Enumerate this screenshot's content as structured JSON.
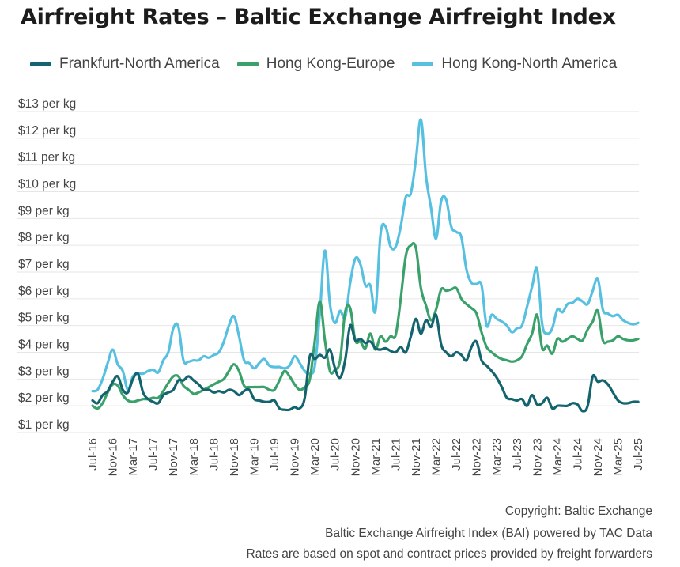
{
  "chart_data": {
    "type": "line",
    "title": "Airfreight Rates – Baltic Exchange Airfreight Index",
    "xlabel": "",
    "ylabel": "",
    "ylim": [
      1,
      13
    ],
    "grid": true,
    "legend_position": "top",
    "y_ticks": [
      {
        "value": 13,
        "label": "$13 per kg"
      },
      {
        "value": 12,
        "label": "$12 per kg"
      },
      {
        "value": 11,
        "label": "$11 per kg"
      },
      {
        "value": 10,
        "label": "$10 per kg"
      },
      {
        "value": 9,
        "label": "$9 per kg"
      },
      {
        "value": 8,
        "label": "$8 per kg"
      },
      {
        "value": 7,
        "label": "$7 per kg"
      },
      {
        "value": 6,
        "label": "$6 per kg"
      },
      {
        "value": 5,
        "label": "$5 per kg"
      },
      {
        "value": 4,
        "label": "$4 per kg"
      },
      {
        "value": 3,
        "label": "$3 per kg"
      },
      {
        "value": 2,
        "label": "$2 per kg"
      },
      {
        "value": 1,
        "label": "$1 per kg"
      }
    ],
    "x_start": "Jul-16",
    "x_end": "Jul-25",
    "x_interval_months": 1,
    "x_tick_labels": [
      "Jul-16",
      "Nov-16",
      "Mar-17",
      "Jul-17",
      "Nov-17",
      "Mar-18",
      "Jul-18",
      "Nov-18",
      "Mar-19",
      "Jul-19",
      "Nov-19",
      "Mar-20",
      "Jul-20",
      "Nov-20",
      "Mar-21",
      "Jul-21",
      "Nov-21",
      "Mar-22",
      "Jul-22",
      "Nov-22",
      "Mar-23",
      "Jul-23",
      "Nov-23",
      "Mar-24",
      "Jul-24",
      "Nov-24",
      "Mar-25",
      "Jul-25"
    ],
    "x_tick_every_months": 4,
    "series": [
      {
        "name": "Frankfurt-North America",
        "color": "#13646e",
        "values": [
          2.2,
          2.1,
          2.4,
          2.55,
          2.9,
          3.1,
          2.6,
          2.5,
          3.0,
          3.2,
          2.5,
          2.25,
          2.15,
          2.1,
          2.4,
          2.5,
          2.6,
          2.95,
          2.95,
          3.1,
          2.95,
          2.8,
          2.6,
          2.6,
          2.5,
          2.55,
          2.5,
          2.6,
          2.55,
          2.4,
          2.55,
          2.6,
          2.25,
          2.2,
          2.15,
          2.15,
          2.2,
          1.9,
          1.85,
          1.85,
          1.95,
          1.9,
          2.3,
          3.85,
          3.75,
          3.9,
          3.8,
          4.1,
          3.4,
          3.05,
          3.7,
          5.0,
          4.45,
          4.5,
          4.35,
          4.4,
          4.15,
          4.1,
          4.15,
          4.05,
          4.0,
          4.2,
          4.0,
          4.6,
          5.25,
          4.7,
          5.2,
          4.95,
          5.4,
          4.3,
          4.0,
          3.85,
          4.0,
          3.9,
          3.7,
          4.2,
          4.4,
          3.7,
          3.5,
          3.3,
          3.05,
          2.7,
          2.3,
          2.25,
          2.2,
          2.25,
          2.0,
          2.4,
          2.05,
          2.1,
          2.3,
          1.9,
          2.0,
          2.0,
          2.0,
          2.1,
          2.05,
          1.8,
          2.0,
          3.1,
          2.9,
          2.95,
          2.8,
          2.5,
          2.2,
          2.1,
          2.1,
          2.15,
          2.15
        ]
      },
      {
        "name": "Hong Kong-Europe",
        "color": "#3aa16b",
        "values": [
          2.0,
          1.9,
          2.1,
          2.5,
          2.8,
          2.75,
          2.4,
          2.2,
          2.15,
          2.2,
          2.25,
          2.25,
          2.3,
          2.3,
          2.55,
          2.85,
          3.1,
          3.1,
          2.75,
          2.6,
          2.45,
          2.5,
          2.6,
          2.7,
          2.8,
          2.9,
          3.0,
          3.3,
          3.55,
          3.3,
          2.75,
          2.7,
          2.7,
          2.7,
          2.7,
          2.6,
          2.6,
          2.95,
          3.3,
          3.1,
          2.8,
          2.6,
          2.7,
          3.0,
          4.45,
          5.9,
          4.45,
          3.3,
          3.35,
          3.7,
          5.5,
          5.65,
          4.45,
          4.4,
          4.15,
          4.7,
          4.1,
          4.6,
          4.4,
          4.6,
          4.65,
          6.0,
          7.6,
          8.0,
          7.9,
          6.4,
          5.75,
          5.2,
          5.6,
          6.35,
          6.3,
          6.35,
          6.4,
          6.0,
          5.8,
          5.65,
          5.45,
          4.75,
          4.2,
          4.0,
          3.85,
          3.75,
          3.7,
          3.65,
          3.7,
          3.85,
          4.3,
          4.7,
          5.4,
          4.15,
          4.25,
          3.95,
          4.5,
          4.4,
          4.5,
          4.6,
          4.5,
          4.45,
          4.85,
          5.15,
          5.55,
          4.45,
          4.4,
          4.45,
          4.6,
          4.5,
          4.45,
          4.45,
          4.5
        ]
      },
      {
        "name": "Hong Kong-North America",
        "color": "#56c0e0",
        "values": [
          2.55,
          2.6,
          3.0,
          3.6,
          4.1,
          3.55,
          3.3,
          2.6,
          3.1,
          3.2,
          3.2,
          3.3,
          3.35,
          3.25,
          3.7,
          4.0,
          4.9,
          4.95,
          3.7,
          3.65,
          3.7,
          3.7,
          3.85,
          3.8,
          3.9,
          4.0,
          4.4,
          5.0,
          5.35,
          4.6,
          3.7,
          3.6,
          3.4,
          3.6,
          3.75,
          3.5,
          3.45,
          3.45,
          3.4,
          3.5,
          3.85,
          3.6,
          3.3,
          3.2,
          3.5,
          5.5,
          7.8,
          5.8,
          5.1,
          5.55,
          5.3,
          6.6,
          7.5,
          7.3,
          6.5,
          6.5,
          5.55,
          8.4,
          8.7,
          7.95,
          7.95,
          8.7,
          9.8,
          9.95,
          11.2,
          12.7,
          10.6,
          9.4,
          8.25,
          9.65,
          9.7,
          8.7,
          8.5,
          8.3,
          7.1,
          6.6,
          6.55,
          6.5,
          5.0,
          5.4,
          5.25,
          5.15,
          5.0,
          4.75,
          4.9,
          5.0,
          5.7,
          6.45,
          7.1,
          5.05,
          4.7,
          4.9,
          5.6,
          5.5,
          5.8,
          5.85,
          6.0,
          5.9,
          5.8,
          6.3,
          6.75,
          5.6,
          5.45,
          5.35,
          5.4,
          5.2,
          5.1,
          5.05,
          5.1
        ]
      }
    ]
  },
  "footer": {
    "line1": "Copyright: Baltic Exchange",
    "line2": "Baltic Exchange Airfreight Index (BAI) powered by TAC Data",
    "line3": "Rates are based on spot and contract prices provided by freight forwarders"
  }
}
